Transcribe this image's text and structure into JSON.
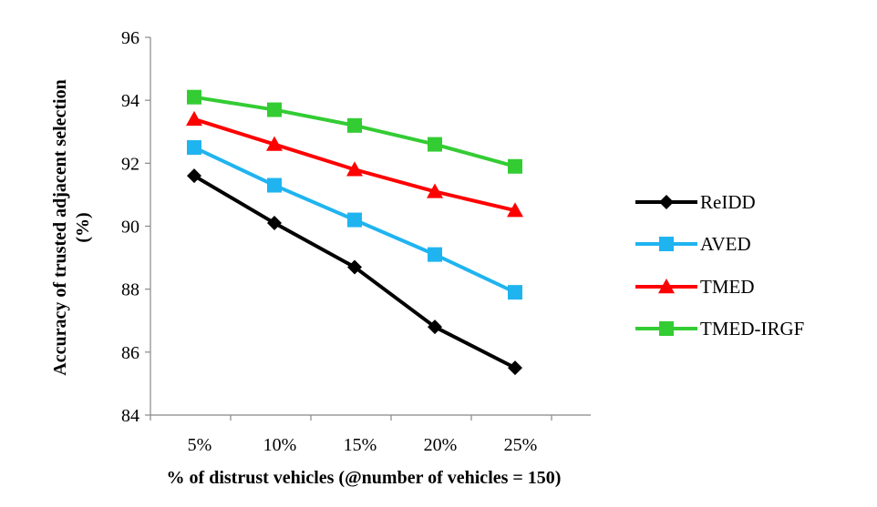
{
  "chart_data": {
    "type": "line",
    "title": "",
    "xlabel": "% of distrust vehicles (@number of vehicles = 150)",
    "ylabel_line1": "Accuracy of trusted adjacent selection",
    "ylabel_line2": "(%)",
    "categories": [
      "5%",
      "10%",
      "15%",
      "20%",
      "25%"
    ],
    "ylim": [
      84,
      96
    ],
    "yticks": [
      "84",
      "86",
      "88",
      "90",
      "92",
      "94",
      "96"
    ],
    "grid": false,
    "legend_position": "right",
    "series": [
      {
        "name": "ReIDD",
        "marker": "diamond",
        "color": "#000000",
        "values": [
          91.6,
          90.1,
          88.7,
          86.8,
          85.5
        ]
      },
      {
        "name": "AVED",
        "marker": "square",
        "color": "#1FB4F0",
        "values": [
          92.5,
          91.3,
          90.2,
          89.1,
          87.9
        ]
      },
      {
        "name": "TMED",
        "marker": "triangle",
        "color": "#FF0000",
        "values": [
          93.4,
          92.6,
          91.8,
          91.1,
          90.5
        ]
      },
      {
        "name": "TMED-IRGF",
        "marker": "square",
        "color": "#33CC33",
        "values": [
          94.1,
          93.7,
          93.2,
          92.6,
          91.9
        ]
      }
    ]
  }
}
